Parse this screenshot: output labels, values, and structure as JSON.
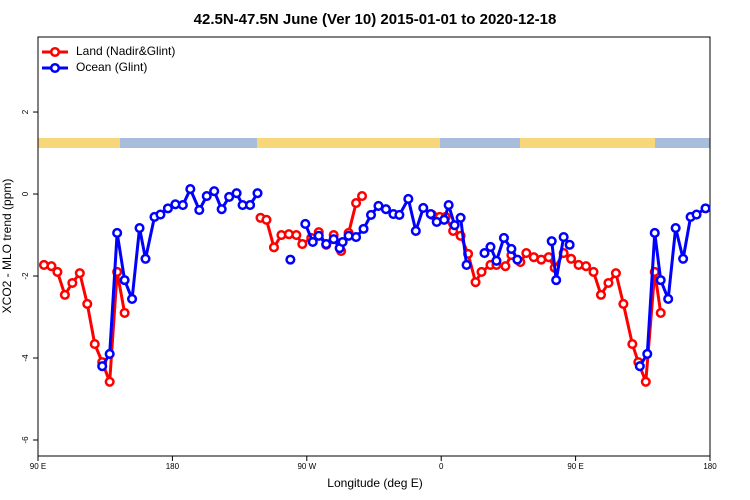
{
  "chart_data": {
    "type": "line",
    "title": "42.5N-47.5N June (Ver 10)   2015-01-01 to 2020-12-18",
    "x_label": "Longitude (deg E)",
    "y_label": "XCO2 - MLO trend (ppm)",
    "xlim": [
      90,
      540
    ],
    "xticks": [
      {
        "value": 90,
        "label": "90 E"
      },
      {
        "value": 180,
        "label": "180"
      },
      {
        "value": 270,
        "label": "90 W"
      },
      {
        "value": 360,
        "label": "0"
      },
      {
        "value": 450,
        "label": "90 E"
      },
      {
        "value": 540,
        "label": "180"
      }
    ],
    "ylim": [
      -6.39,
      3.83
    ],
    "yticks": [
      -6,
      -4,
      -2,
      0,
      2
    ],
    "legend": "top-left",
    "series": [
      {
        "name": "Land (Nadir&Glint)",
        "color": "#ff0000",
        "x": [
          94,
          99,
          103,
          108,
          113,
          118,
          123,
          128,
          133,
          138,
          143,
          148,
          null,
          239,
          243,
          248,
          253,
          258,
          263,
          267,
          273,
          278,
          283,
          288,
          293,
          298,
          303,
          307,
          null,
          354,
          359,
          363,
          368,
          373,
          378,
          383,
          387,
          393,
          397,
          403,
          407,
          413,
          417,
          422,
          427,
          432,
          436,
          442,
          447,
          452,
          457,
          462,
          467,
          472,
          477,
          482,
          488,
          492,
          497,
          503,
          507
        ],
        "values": [
          -1.73,
          -1.76,
          -1.9,
          -2.46,
          -2.17,
          -1.93,
          -2.68,
          -3.66,
          -4.1,
          -4.58,
          -1.9,
          -2.9,
          null,
          -0.58,
          -0.63,
          -1.3,
          -1.0,
          -0.98,
          -1.0,
          -1.22,
          -1.07,
          -0.93,
          -1.24,
          -1.0,
          -1.39,
          -0.95,
          -0.22,
          -0.05,
          null,
          -0.51,
          -0.56,
          -0.56,
          -0.9,
          -1.02,
          -1.46,
          -2.15,
          -1.9,
          -1.73,
          -1.73,
          -1.76,
          -1.49,
          -1.66,
          -1.44,
          -1.54,
          -1.6,
          -1.54,
          -1.8,
          -1.44,
          -1.58,
          -1.73,
          -1.76,
          -1.9,
          -2.46,
          -2.17,
          -1.93,
          -2.68,
          -3.66,
          -4.1,
          -4.58,
          -1.9,
          -2.9
        ]
      },
      {
        "name": "Ocean (Glint)",
        "color": "#0000ff",
        "x": [
          133,
          138,
          143,
          148,
          153,
          158,
          162,
          168,
          172,
          177,
          182,
          187,
          192,
          198,
          203,
          208,
          213,
          218,
          223,
          227,
          232,
          237,
          null,
          259,
          null,
          269,
          274,
          278,
          283,
          288,
          292,
          294,
          298,
          303,
          308,
          313,
          318,
          323,
          328,
          332,
          338,
          343,
          348,
          353,
          357,
          362,
          365,
          369,
          373,
          377,
          null,
          389,
          393,
          397,
          402,
          407,
          411,
          null,
          434,
          437,
          442,
          446,
          null,
          493,
          498,
          503,
          507,
          512,
          517,
          522,
          527,
          531,
          537
        ],
        "values": [
          -4.2,
          -3.9,
          -0.95,
          -2.1,
          -2.56,
          -0.83,
          -1.58,
          -0.56,
          -0.5,
          -0.35,
          -0.25,
          -0.27,
          0.12,
          -0.39,
          -0.05,
          0.07,
          -0.37,
          -0.07,
          0.02,
          -0.27,
          -0.27,
          0.02,
          null,
          -1.6,
          null,
          -0.73,
          -1.17,
          -1.02,
          -1.22,
          -1.1,
          -1.32,
          -1.17,
          -1.02,
          -1.05,
          -0.85,
          -0.51,
          -0.29,
          -0.37,
          -0.49,
          -0.51,
          -0.12,
          -0.9,
          -0.34,
          -0.49,
          -0.68,
          -0.63,
          -0.27,
          -0.76,
          -0.58,
          -1.73,
          null,
          -1.44,
          -1.29,
          -1.63,
          -1.07,
          -1.34,
          -1.6,
          null,
          -1.15,
          -2.1,
          -1.05,
          -1.24,
          null,
          -4.2,
          -3.9,
          -0.95,
          -2.1,
          -2.56,
          -0.83,
          -1.58,
          -0.56,
          -0.5,
          -0.35
        ]
      }
    ]
  }
}
